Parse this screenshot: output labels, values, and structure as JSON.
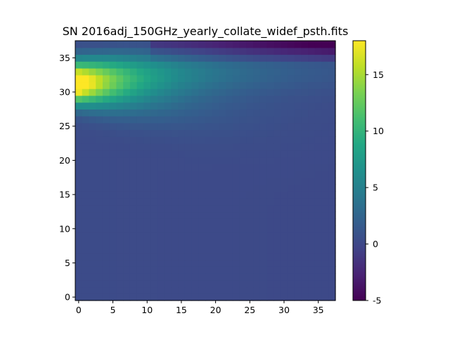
{
  "chart_data": {
    "type": "heatmap",
    "title": "SN 2016adj_150GHz_yearly_collate_widef_psth.fits",
    "xlabel": "",
    "ylabel": "",
    "x_ticks": [
      "0",
      "5",
      "10",
      "15",
      "20",
      "25",
      "30",
      "35"
    ],
    "y_ticks": [
      "0",
      "5",
      "10",
      "15",
      "20",
      "25",
      "30",
      "35"
    ],
    "xlim": [
      -0.5,
      37.5
    ],
    "ylim": [
      -0.5,
      37.5
    ],
    "grid": false,
    "colormap": "viridis",
    "colorbar": {
      "vmin": -5,
      "vmax": 18,
      "ticks": [
        "-5",
        "0",
        "5",
        "10",
        "15"
      ]
    },
    "grid_size": [
      38,
      38
    ],
    "peak": {
      "x": 0,
      "y": 31,
      "value": 18
    },
    "background_value": 0.3
  }
}
